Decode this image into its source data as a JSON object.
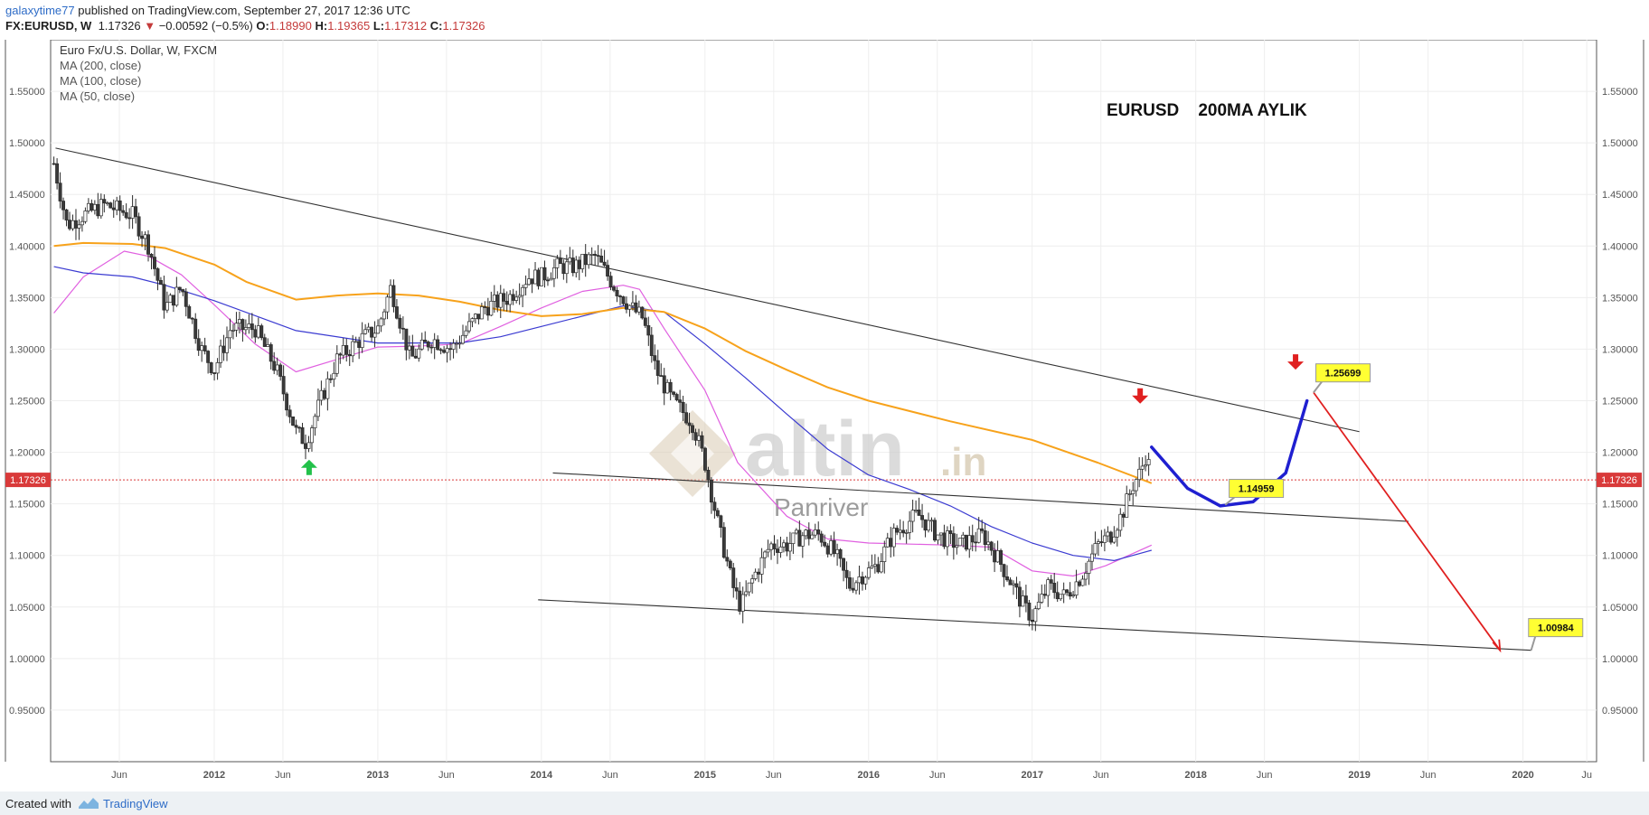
{
  "header": {
    "username": "galaxytime77",
    "published_text": "published on TradingView.com, September 27, 2017 12:36 UTC",
    "symbol": "FX:EURUSD, W",
    "last": "1.17326",
    "change_arrow": "▼",
    "change": "−0.00592 (−0.5%)",
    "o_label": "O:",
    "o_value": "1.18990",
    "h_label": "H:",
    "h_value": "1.19365",
    "l_label": "L:",
    "l_value": "1.17312",
    "c_label": "C:",
    "c_value": "1.17326"
  },
  "footer": {
    "created_with": "Created with",
    "brand": "TradingView"
  },
  "chart_data": {
    "type": "candlestick",
    "title": "Euro Fx/U.S. Dollar, W, FXCM",
    "indicators": [
      "MA (200, close)",
      "MA (100, close)",
      "MA (50, close)"
    ],
    "annotation_title": "EURUSD    200MA AYLIK",
    "watermark": {
      "brand": "altin",
      "suffix": ".in",
      "author": "Panriver"
    },
    "ylim": [
      0.9,
      1.6
    ],
    "y_ticks": [
      "0.95000",
      "1.00000",
      "1.05000",
      "1.10000",
      "1.15000",
      "1.20000",
      "1.25000",
      "1.30000",
      "1.35000",
      "1.40000",
      "1.45000",
      "1.50000",
      "1.55000"
    ],
    "x_ticks": [
      {
        "label": "Jun",
        "t": 2011.42
      },
      {
        "label": "2012",
        "t": 2012.0
      },
      {
        "label": "Jun",
        "t": 2012.42
      },
      {
        "label": "2013",
        "t": 2013.0
      },
      {
        "label": "Jun",
        "t": 2013.42
      },
      {
        "label": "2014",
        "t": 2014.0
      },
      {
        "label": "Jun",
        "t": 2014.42
      },
      {
        "label": "2015",
        "t": 2015.0
      },
      {
        "label": "Jun",
        "t": 2015.42
      },
      {
        "label": "2016",
        "t": 2016.0
      },
      {
        "label": "Jun",
        "t": 2016.42
      },
      {
        "label": "2017",
        "t": 2017.0
      },
      {
        "label": "Jun",
        "t": 2017.42
      },
      {
        "label": "2018",
        "t": 2018.0
      },
      {
        "label": "Jun",
        "t": 2018.42
      },
      {
        "label": "2019",
        "t": 2019.0
      },
      {
        "label": "Jun",
        "t": 2019.42
      },
      {
        "label": "2020",
        "t": 2020.0
      },
      {
        "label": "Ju",
        "t": 2020.39
      }
    ],
    "x_range": [
      2011.0,
      2020.45
    ],
    "price_path": [
      [
        2011.02,
        1.48
      ],
      [
        2011.1,
        1.42
      ],
      [
        2011.2,
        1.43
      ],
      [
        2011.33,
        1.44
      ],
      [
        2011.5,
        1.43
      ],
      [
        2011.6,
        1.4
      ],
      [
        2011.7,
        1.34
      ],
      [
        2011.8,
        1.36
      ],
      [
        2011.92,
        1.3
      ],
      [
        2012.0,
        1.28
      ],
      [
        2012.1,
        1.32
      ],
      [
        2012.25,
        1.32
      ],
      [
        2012.38,
        1.28
      ],
      [
        2012.5,
        1.22
      ],
      [
        2012.56,
        1.21
      ],
      [
        2012.65,
        1.25
      ],
      [
        2012.75,
        1.29
      ],
      [
        2012.9,
        1.31
      ],
      [
        2013.0,
        1.32
      ],
      [
        2013.08,
        1.36
      ],
      [
        2013.2,
        1.29
      ],
      [
        2013.33,
        1.31
      ],
      [
        2013.45,
        1.3
      ],
      [
        2013.55,
        1.32
      ],
      [
        2013.65,
        1.34
      ],
      [
        2013.8,
        1.35
      ],
      [
        2013.92,
        1.37
      ],
      [
        2014.0,
        1.37
      ],
      [
        2014.1,
        1.38
      ],
      [
        2014.2,
        1.38
      ],
      [
        2014.33,
        1.39
      ],
      [
        2014.45,
        1.36
      ],
      [
        2014.55,
        1.34
      ],
      [
        2014.62,
        1.33
      ],
      [
        2014.7,
        1.28
      ],
      [
        2014.8,
        1.25
      ],
      [
        2014.92,
        1.23
      ],
      [
        2015.0,
        1.19
      ],
      [
        2015.08,
        1.13
      ],
      [
        2015.17,
        1.07
      ],
      [
        2015.22,
        1.05
      ],
      [
        2015.3,
        1.08
      ],
      [
        2015.4,
        1.11
      ],
      [
        2015.5,
        1.11
      ],
      [
        2015.6,
        1.12
      ],
      [
        2015.7,
        1.12
      ],
      [
        2015.8,
        1.1
      ],
      [
        2015.88,
        1.07
      ],
      [
        2015.95,
        1.08
      ],
      [
        2016.05,
        1.09
      ],
      [
        2016.15,
        1.12
      ],
      [
        2016.3,
        1.14
      ],
      [
        2016.42,
        1.12
      ],
      [
        2016.55,
        1.11
      ],
      [
        2016.7,
        1.12
      ],
      [
        2016.78,
        1.1
      ],
      [
        2016.85,
        1.08
      ],
      [
        2016.95,
        1.05
      ],
      [
        2017.0,
        1.04
      ],
      [
        2017.1,
        1.07
      ],
      [
        2017.2,
        1.06
      ],
      [
        2017.3,
        1.08
      ],
      [
        2017.4,
        1.11
      ],
      [
        2017.48,
        1.12
      ],
      [
        2017.55,
        1.14
      ],
      [
        2017.62,
        1.17
      ],
      [
        2017.66,
        1.18
      ],
      [
        2017.7,
        1.2
      ],
      [
        2017.73,
        1.17
      ]
    ],
    "ma200": [
      [
        2011.02,
        1.4
      ],
      [
        2011.2,
        1.403
      ],
      [
        2011.5,
        1.402
      ],
      [
        2011.7,
        1.398
      ],
      [
        2012.0,
        1.382
      ],
      [
        2012.2,
        1.365
      ],
      [
        2012.5,
        1.348
      ],
      [
        2012.75,
        1.352
      ],
      [
        2013.0,
        1.354
      ],
      [
        2013.25,
        1.352
      ],
      [
        2013.5,
        1.346
      ],
      [
        2013.75,
        1.338
      ],
      [
        2014.0,
        1.332
      ],
      [
        2014.25,
        1.334
      ],
      [
        2014.5,
        1.34
      ],
      [
        2014.75,
        1.336
      ],
      [
        2015.0,
        1.32
      ],
      [
        2015.25,
        1.298
      ],
      [
        2015.5,
        1.28
      ],
      [
        2015.75,
        1.263
      ],
      [
        2016.0,
        1.25
      ],
      [
        2016.5,
        1.23
      ],
      [
        2017.0,
        1.212
      ],
      [
        2017.4,
        1.19
      ],
      [
        2017.73,
        1.17
      ]
    ],
    "ma100": [
      [
        2011.02,
        1.38
      ],
      [
        2011.2,
        1.374
      ],
      [
        2011.5,
        1.37
      ],
      [
        2011.7,
        1.362
      ],
      [
        2012.0,
        1.347
      ],
      [
        2012.5,
        1.318
      ],
      [
        2013.0,
        1.306
      ],
      [
        2013.5,
        1.306
      ],
      [
        2013.75,
        1.312
      ],
      [
        2014.0,
        1.322
      ],
      [
        2014.25,
        1.332
      ],
      [
        2014.5,
        1.342
      ],
      [
        2014.75,
        1.336
      ],
      [
        2015.0,
        1.305
      ],
      [
        2015.25,
        1.272
      ],
      [
        2015.5,
        1.237
      ],
      [
        2015.75,
        1.203
      ],
      [
        2016.0,
        1.178
      ],
      [
        2016.25,
        1.164
      ],
      [
        2016.5,
        1.148
      ],
      [
        2016.75,
        1.128
      ],
      [
        2017.0,
        1.112
      ],
      [
        2017.25,
        1.1
      ],
      [
        2017.5,
        1.095
      ],
      [
        2017.73,
        1.105
      ]
    ],
    "ma50": [
      [
        2011.02,
        1.335
      ],
      [
        2011.2,
        1.37
      ],
      [
        2011.45,
        1.395
      ],
      [
        2011.6,
        1.39
      ],
      [
        2011.8,
        1.372
      ],
      [
        2012.0,
        1.343
      ],
      [
        2012.25,
        1.305
      ],
      [
        2012.5,
        1.278
      ],
      [
        2012.75,
        1.29
      ],
      [
        2013.0,
        1.302
      ],
      [
        2013.25,
        1.303
      ],
      [
        2013.5,
        1.305
      ],
      [
        2013.75,
        1.322
      ],
      [
        2014.0,
        1.34
      ],
      [
        2014.25,
        1.356
      ],
      [
        2014.5,
        1.362
      ],
      [
        2014.6,
        1.358
      ],
      [
        2014.75,
        1.32
      ],
      [
        2015.0,
        1.26
      ],
      [
        2015.2,
        1.19
      ],
      [
        2015.5,
        1.138
      ],
      [
        2015.75,
        1.116
      ],
      [
        2016.0,
        1.112
      ],
      [
        2016.5,
        1.11
      ],
      [
        2016.75,
        1.108
      ],
      [
        2017.0,
        1.085
      ],
      [
        2017.25,
        1.08
      ],
      [
        2017.45,
        1.09
      ],
      [
        2017.73,
        1.11
      ]
    ],
    "trendlines": [
      {
        "from": [
          2011.03,
          1.495
        ],
        "to": [
          2019.0,
          1.22
        ],
        "color": "#333333"
      },
      {
        "from": [
          2014.07,
          1.18
        ],
        "to": [
          2019.3,
          1.133
        ],
        "color": "#333333"
      },
      {
        "from": [
          2013.98,
          1.057
        ],
        "to": [
          2020.05,
          1.008
        ],
        "color": "#333333"
      }
    ],
    "projection_blue": [
      [
        2017.73,
        1.205
      ],
      [
        2017.95,
        1.165
      ],
      [
        2018.15,
        1.148
      ],
      [
        2018.35,
        1.152
      ],
      [
        2018.55,
        1.18
      ],
      [
        2018.68,
        1.25
      ]
    ],
    "projection_red": {
      "from": [
        2018.72,
        1.258
      ],
      "to": [
        2019.86,
        1.008
      ]
    },
    "callouts": [
      {
        "text": "1.14959",
        "t": 2018.18,
        "p": 1.149,
        "box_t": 2018.37,
        "box_p": 1.165
      },
      {
        "text": "1.25699",
        "t": 2018.72,
        "p": 1.258,
        "box_t": 2018.9,
        "box_p": 1.277
      },
      {
        "text": "1.00984",
        "t": 2020.05,
        "p": 1.008,
        "box_t": 2020.2,
        "box_p": 1.03
      }
    ],
    "arrows": [
      {
        "dir": "up",
        "t": 2012.58,
        "p": 1.185,
        "color": "#23c14a"
      },
      {
        "dir": "down",
        "t": 2017.66,
        "p": 1.255,
        "color": "#e02020"
      },
      {
        "dir": "down",
        "t": 2018.61,
        "p": 1.288,
        "color": "#e02020"
      }
    ],
    "current_price": {
      "label": "1.17326",
      "value": 1.17326
    },
    "colors": {
      "up": "#ffffff",
      "down": "#3a3a3a",
      "ma200": "#f7a21b",
      "ma100": "#3a3ad1",
      "ma50": "#e060e0",
      "blue_projection": "#1f1fd0",
      "red_projection": "#e02020",
      "callout": "#ffff33",
      "price_line": "#d93a3a"
    }
  }
}
